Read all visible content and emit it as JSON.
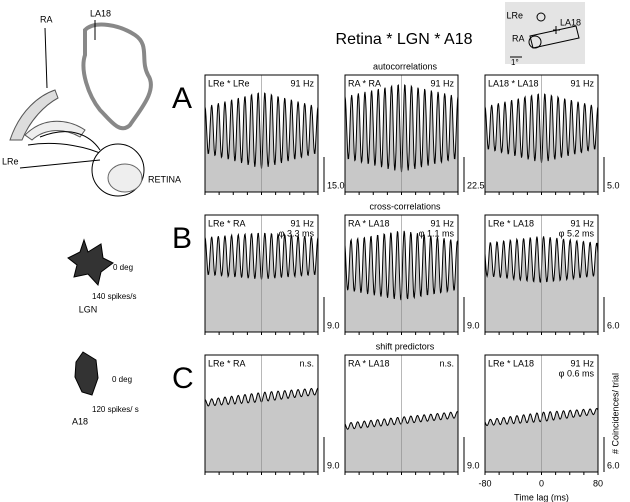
{
  "title": "Retina * LGN * A18",
  "inset": {
    "labels": [
      "LRe",
      "LA18",
      "RA"
    ],
    "scale": "1°"
  },
  "anatomy": {
    "labels": [
      "RA",
      "LA18",
      "LRe",
      "RETINA"
    ]
  },
  "polar": [
    {
      "direction": "0 deg",
      "rate": "140 spikes/s",
      "name": "LGN"
    },
    {
      "direction": "0 deg",
      "rate": "120 spikes/ s",
      "name": "A18"
    }
  ],
  "rows": [
    {
      "label": "A",
      "heading": "autocorrelations",
      "panels": [
        {
          "name": "LRe * LRe",
          "info": [
            "91 Hz"
          ],
          "scale": "15.0"
        },
        {
          "name": "RA * RA",
          "info": [
            "91 Hz"
          ],
          "scale": "22.5"
        },
        {
          "name": "LA18 * LA18",
          "info": [
            "91 Hz"
          ],
          "scale": "5.0"
        }
      ]
    },
    {
      "label": "B",
      "heading": "cross-correlations",
      "panels": [
        {
          "name": "LRe * RA",
          "info": [
            "91 Hz",
            "φ 3.3 ms"
          ],
          "scale": "9.0"
        },
        {
          "name": "RA * LA18",
          "info": [
            "91 Hz",
            "φ 1.1 ms"
          ],
          "scale": "9.0"
        },
        {
          "name": "LRe * LA18",
          "info": [
            "91 Hz",
            "φ 5.2 ms"
          ],
          "scale": "6.0"
        }
      ]
    },
    {
      "label": "C",
      "heading": "shift predictors",
      "panels": [
        {
          "name": "LRe * RA",
          "info": [
            "n.s."
          ],
          "scale": "9.0"
        },
        {
          "name": "RA * LA18",
          "info": [
            "n.s."
          ],
          "scale": "9.0"
        },
        {
          "name": "LRe * LA18",
          "info": [
            "91 Hz",
            "φ 0.6 ms"
          ],
          "scale": "6.0"
        }
      ]
    }
  ],
  "x_axis": {
    "ticks": [
      "-80",
      "0",
      "80"
    ],
    "label": "Time lag (ms)"
  },
  "y_axis": {
    "label": "# Coincidences/ trial"
  }
}
